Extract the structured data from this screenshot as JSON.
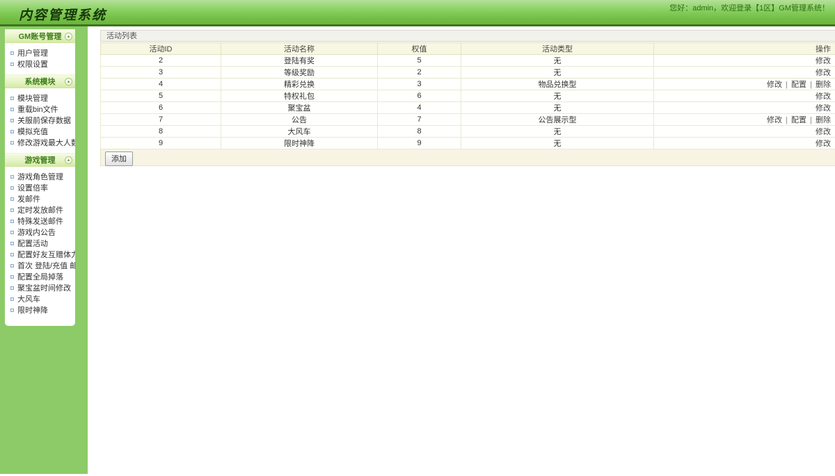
{
  "header": {
    "title": "内容管理系统",
    "greeting": "您好：admin，欢迎登录【1区】GM管理系统！"
  },
  "sidebar": {
    "toggle_glyph": "▴",
    "groups": [
      {
        "title": "GM账号管理",
        "items": [
          "用户管理",
          "权限设置"
        ]
      },
      {
        "title": "系统模块",
        "items": [
          "模块管理",
          "重载bin文件",
          "关服前保存数据",
          "模拟充值",
          "修改游戏最大人数"
        ]
      },
      {
        "title": "游戏管理",
        "items": [
          "游戏角色管理",
          "设置倍率",
          "发邮件",
          "定时发放邮件",
          "特殊发送邮件",
          "游戏内公告",
          "配置活动",
          "配置好友互赠体力",
          "首次 登陆/充值 邮件",
          "配置全局掉落",
          "聚宝盆时间修改",
          "大风车",
          "限时神降"
        ]
      }
    ]
  },
  "main": {
    "panel_title": "活动列表",
    "add_button_label": "添加",
    "action_separator": "|",
    "table": {
      "columns": [
        "活动ID",
        "活动名称",
        "权值",
        "活动类型",
        "操作"
      ],
      "rows": [
        {
          "id": "2",
          "name": "登陆有奖",
          "weight": "5",
          "type": "无",
          "actions": [
            "修改"
          ]
        },
        {
          "id": "3",
          "name": "等级奖励",
          "weight": "2",
          "type": "无",
          "actions": [
            "修改"
          ]
        },
        {
          "id": "4",
          "name": "精彩兑换",
          "weight": "3",
          "type": "物品兑换型",
          "actions": [
            "修改",
            "配置",
            "删除"
          ]
        },
        {
          "id": "5",
          "name": "特权礼包",
          "weight": "6",
          "type": "无",
          "actions": [
            "修改"
          ]
        },
        {
          "id": "6",
          "name": "聚宝盆",
          "weight": "4",
          "type": "无",
          "actions": [
            "修改"
          ]
        },
        {
          "id": "7",
          "name": "公告",
          "weight": "7",
          "type": "公告展示型",
          "actions": [
            "修改",
            "配置",
            "删除"
          ]
        },
        {
          "id": "8",
          "name": "大风车",
          "weight": "8",
          "type": "无",
          "actions": [
            "修改"
          ]
        },
        {
          "id": "9",
          "name": "限时神降",
          "weight": "9",
          "type": "无",
          "actions": [
            "修改"
          ]
        }
      ]
    }
  },
  "colors": {
    "banner_green": "#74bf45",
    "banner_border": "#3e741e",
    "sidebar_green": "#8ccb67",
    "group_header_bg": "#d5eaa6",
    "group_header_text": "#3c7e18",
    "table_header_bg": "#f7f7e2",
    "table_border": "#e2e2c6",
    "footer_bg": "#f8f4e4"
  }
}
